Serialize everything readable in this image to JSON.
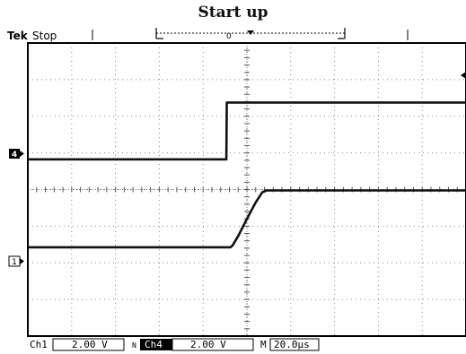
{
  "title": "Start up",
  "header": {
    "brand": "Tek",
    "state": "Stop"
  },
  "channels": [
    {
      "id": "4",
      "marker": "4",
      "style": "filled"
    },
    {
      "id": "1",
      "marker": "1",
      "style": "outline"
    }
  ],
  "readout": {
    "ch1_label": "Ch1",
    "ch1_scale": "2.00 V",
    "ch1_coupling": "N",
    "ch4_label": "Ch4",
    "ch4_scale": "2.00 V",
    "time_label": "M",
    "time_scale": "20.0µs"
  },
  "chart_data": {
    "type": "line",
    "title": "Start up",
    "x_unit": "µs",
    "y_unit": "V",
    "xlim": [
      -100,
      100
    ],
    "ylim": [
      -8,
      8
    ],
    "grid": true,
    "series": [
      {
        "name": "Ch4",
        "x": [
          -100,
          -9.4,
          -9.2,
          100
        ],
        "y": [
          1.65,
          1.65,
          4.75,
          4.75
        ]
      },
      {
        "name": "Ch1",
        "x": [
          -100,
          -7.5,
          -6.5,
          -4.0,
          0,
          4.0,
          7.0,
          9.0,
          100
        ],
        "y": [
          -3.15,
          -3.15,
          -3.05,
          -2.55,
          -1.6,
          -0.7,
          -0.15,
          -0.05,
          -0.05
        ]
      }
    ]
  }
}
